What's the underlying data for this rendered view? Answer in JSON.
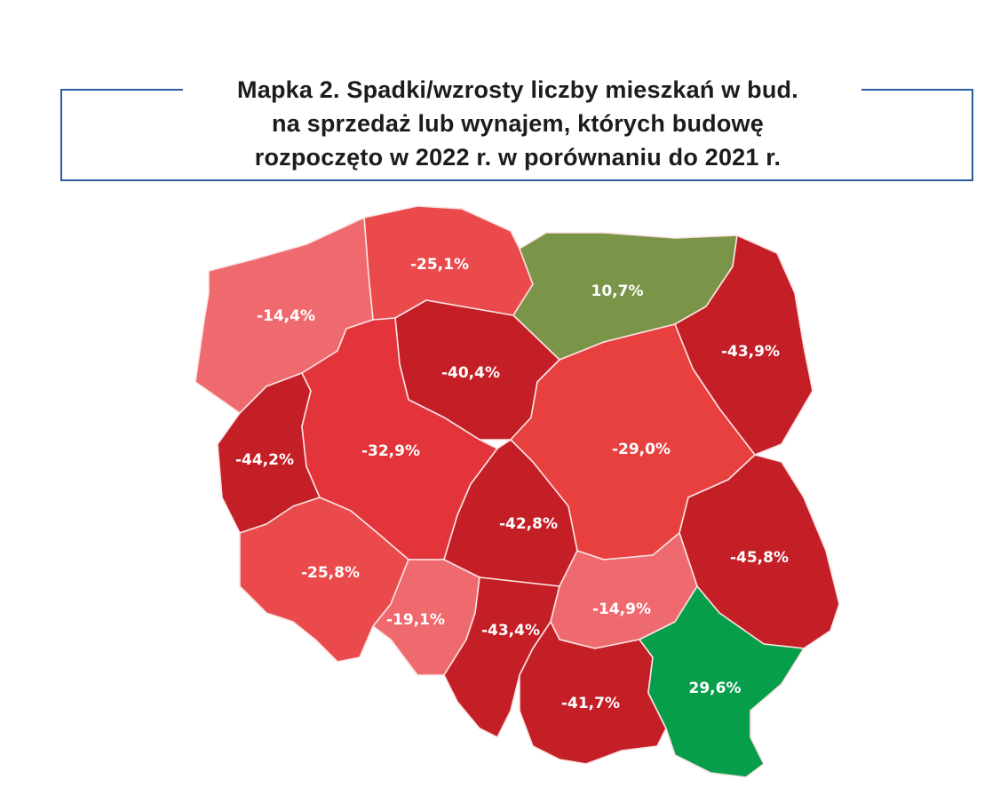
{
  "title": {
    "line1": "Mapka 2. Spadki/wzrosty liczby mieszkań w bud.",
    "line2": "na sprzedaż lub wynajem, których budowę",
    "line3": "rozpoczęto w 2022 r. w porównaniu do 2021 r."
  },
  "colors": {
    "frame": "#2a5d9f",
    "strong_decrease": "#c41f26",
    "decrease": "#e2343a",
    "moderate_decrease": "#ea4a4c",
    "small_decrease": "#ef6a6e",
    "moderate_increase": "#7a9448",
    "large_increase": "#079e4b"
  },
  "regions": [
    {
      "id": "pomorskie",
      "label": "-25,1%",
      "value": -25.1,
      "color": "#ea4a4c"
    },
    {
      "id": "warminsko-mazurskie",
      "label": "10,7%",
      "value": 10.7,
      "color": "#7a9448"
    },
    {
      "id": "zachodniopomorskie",
      "label": "-14,4%",
      "value": -14.4,
      "color": "#ef6a6e"
    },
    {
      "id": "podlaskie",
      "label": "-43,9%",
      "value": -43.9,
      "color": "#c41f26"
    },
    {
      "id": "kujawsko-pomorskie",
      "label": "-40,4%",
      "value": -40.4,
      "color": "#c41f26"
    },
    {
      "id": "lubuskie",
      "label": "-44,2%",
      "value": -44.2,
      "color": "#c41f26"
    },
    {
      "id": "wielkopolskie",
      "label": "-32,9%",
      "value": -32.9,
      "color": "#e2343a"
    },
    {
      "id": "mazowieckie",
      "label": "-29,0%",
      "value": -29.0,
      "color": "#e8403f"
    },
    {
      "id": "lodzkie",
      "label": "-42,8%",
      "value": -42.8,
      "color": "#c41f26"
    },
    {
      "id": "dolnoslaskie",
      "label": "-25,8%",
      "value": -25.8,
      "color": "#ea4a4c"
    },
    {
      "id": "lubelskie",
      "label": "-45,8%",
      "value": -45.8,
      "color": "#c41f26"
    },
    {
      "id": "opolskie",
      "label": "-19,1%",
      "value": -19.1,
      "color": "#ef6a6e"
    },
    {
      "id": "slaskie",
      "label": "-43,4%",
      "value": -43.4,
      "color": "#c41f26"
    },
    {
      "id": "swietokrzyskie",
      "label": "-14,9%",
      "value": -14.9,
      "color": "#ef6a6e"
    },
    {
      "id": "malopolskie",
      "label": "-41,7%",
      "value": -41.7,
      "color": "#c41f26"
    },
    {
      "id": "podkarpackie",
      "label": "29,6%",
      "value": 29.6,
      "color": "#079e4b"
    }
  ]
}
